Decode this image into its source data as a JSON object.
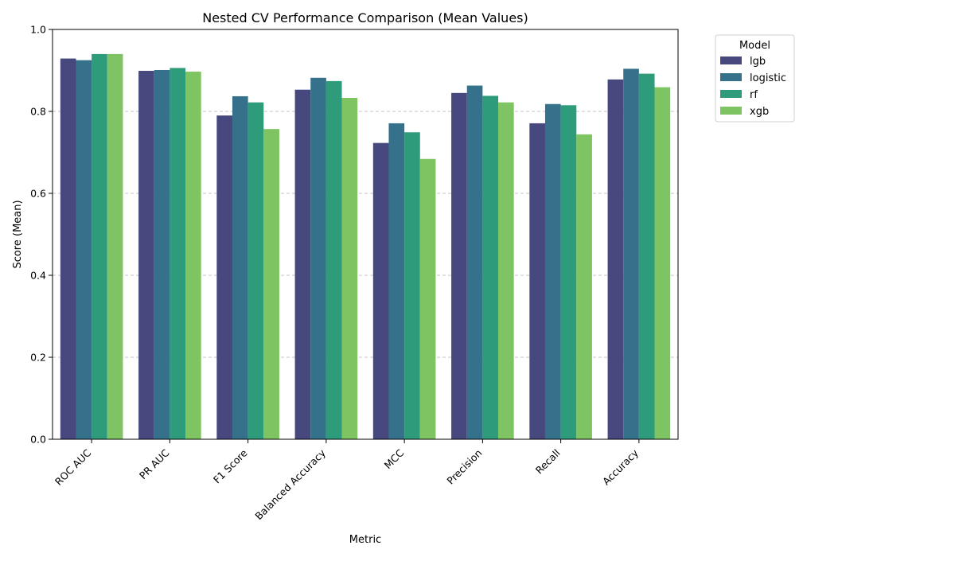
{
  "chart_data": {
    "type": "bar",
    "title": "Nested CV Performance Comparison (Mean Values)",
    "xlabel": "Metric",
    "ylabel": "Score (Mean)",
    "ylim": [
      0,
      1.0
    ],
    "yticks": [
      "0.0",
      "0.2",
      "0.4",
      "0.6",
      "0.8",
      "1.0"
    ],
    "grid": "y-dashed",
    "legend": {
      "title": "Model",
      "placement": "outside-top-right"
    },
    "categories": [
      "ROC AUC",
      "PR AUC",
      "F1 Score",
      "Balanced Accuracy",
      "MCC",
      "Precision",
      "Recall",
      "Accuracy"
    ],
    "series": [
      {
        "name": "lgb",
        "color": "#46487e",
        "values": [
          0.929,
          0.899,
          0.79,
          0.853,
          0.723,
          0.845,
          0.771,
          0.878
        ]
      },
      {
        "name": "logistic",
        "color": "#35718a",
        "values": [
          0.925,
          0.901,
          0.837,
          0.882,
          0.771,
          0.863,
          0.818,
          0.904
        ]
      },
      {
        "name": "rf",
        "color": "#2e9b7b",
        "values": [
          0.94,
          0.906,
          0.822,
          0.874,
          0.749,
          0.838,
          0.815,
          0.892
        ]
      },
      {
        "name": "xgb",
        "color": "#7fc462",
        "values": [
          0.94,
          0.897,
          0.757,
          0.833,
          0.684,
          0.822,
          0.744,
          0.859
        ]
      }
    ]
  }
}
